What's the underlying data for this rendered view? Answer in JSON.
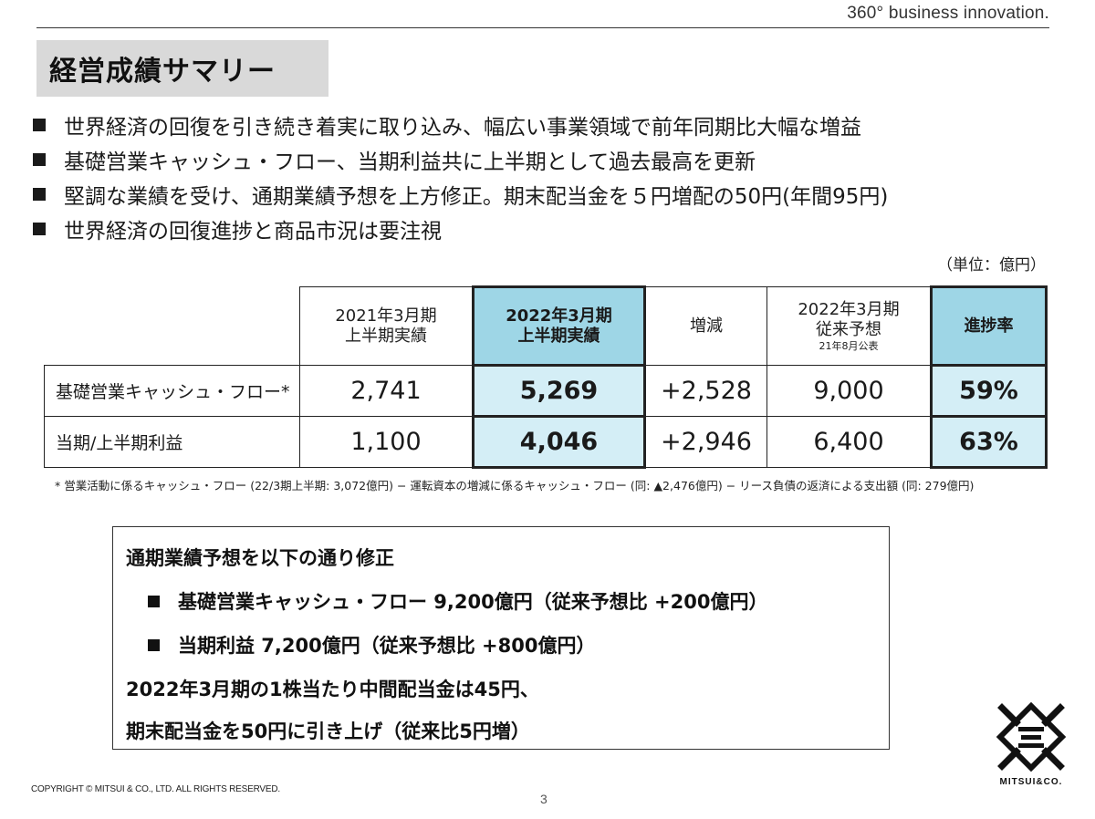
{
  "tagline": "360° business innovation.",
  "title": "経営成績サマリー",
  "bullets": [
    "世界経済の回復を引き続き着実に取り込み、幅広い事業領域で前年同期比大幅な増益",
    "基礎営業キャッシュ・フロー、当期利益共に上半期として過去最高を更新",
    "堅調な業績を受け、通期業績予想を上方修正。期末配当金を５円増配の50円(年間95円)",
    "世界経済の回復進捗と商品市況は要注視"
  ],
  "unit_label": "（単位：億円）",
  "table": {
    "headers": {
      "col1": [
        "2021年3月期",
        "上半期実績"
      ],
      "col2": [
        "2022年3月期",
        "上半期実績"
      ],
      "col3": "増減",
      "col4": [
        "2022年3月期",
        "従来予想",
        "21年8月公表"
      ],
      "col5": "進捗率"
    },
    "rows": [
      {
        "label": "基礎営業キャッシュ・フロー*",
        "v1": "2,741",
        "v2": "5,269",
        "v3": "+2,528",
        "v4": "9,000",
        "v5": "59%"
      },
      {
        "label": "当期/上半期利益",
        "v1": "1,100",
        "v2": "4,046",
        "v3": "+2,946",
        "v4": "6,400",
        "v5": "63%"
      }
    ]
  },
  "footnote": "* 営業活動に係るキャッシュ・フロー (22/3期上半期: 3,072億円) − 運転資本の増減に係るキャッシュ・フロー (同: ▲2,476億円) − リース負債の返済による支出額 (同: 279億円)",
  "revision": {
    "heading": "通期業績予想を以下の通り修正",
    "items": [
      "基礎営業キャッシュ・フロー 9,200億円（従来予想比 +200億円）",
      "当期利益 7,200億円（従来予想比 +800億円）"
    ],
    "dividend_line1": "2022年3月期の1株当たり中間配当金は45円、",
    "dividend_line2": "期末配当金を50円に引き上げ（従来比5円増）"
  },
  "copyright": "COPYRIGHT © MITSUI & CO., LTD. ALL RIGHTS RESERVED.",
  "page_number": "3",
  "logo_text": "MITSUI&CO.",
  "colors": {
    "highlight_light": "#d4eef6",
    "highlight_strong": "#9ed6e6",
    "title_bg": "#d9d9d9"
  }
}
